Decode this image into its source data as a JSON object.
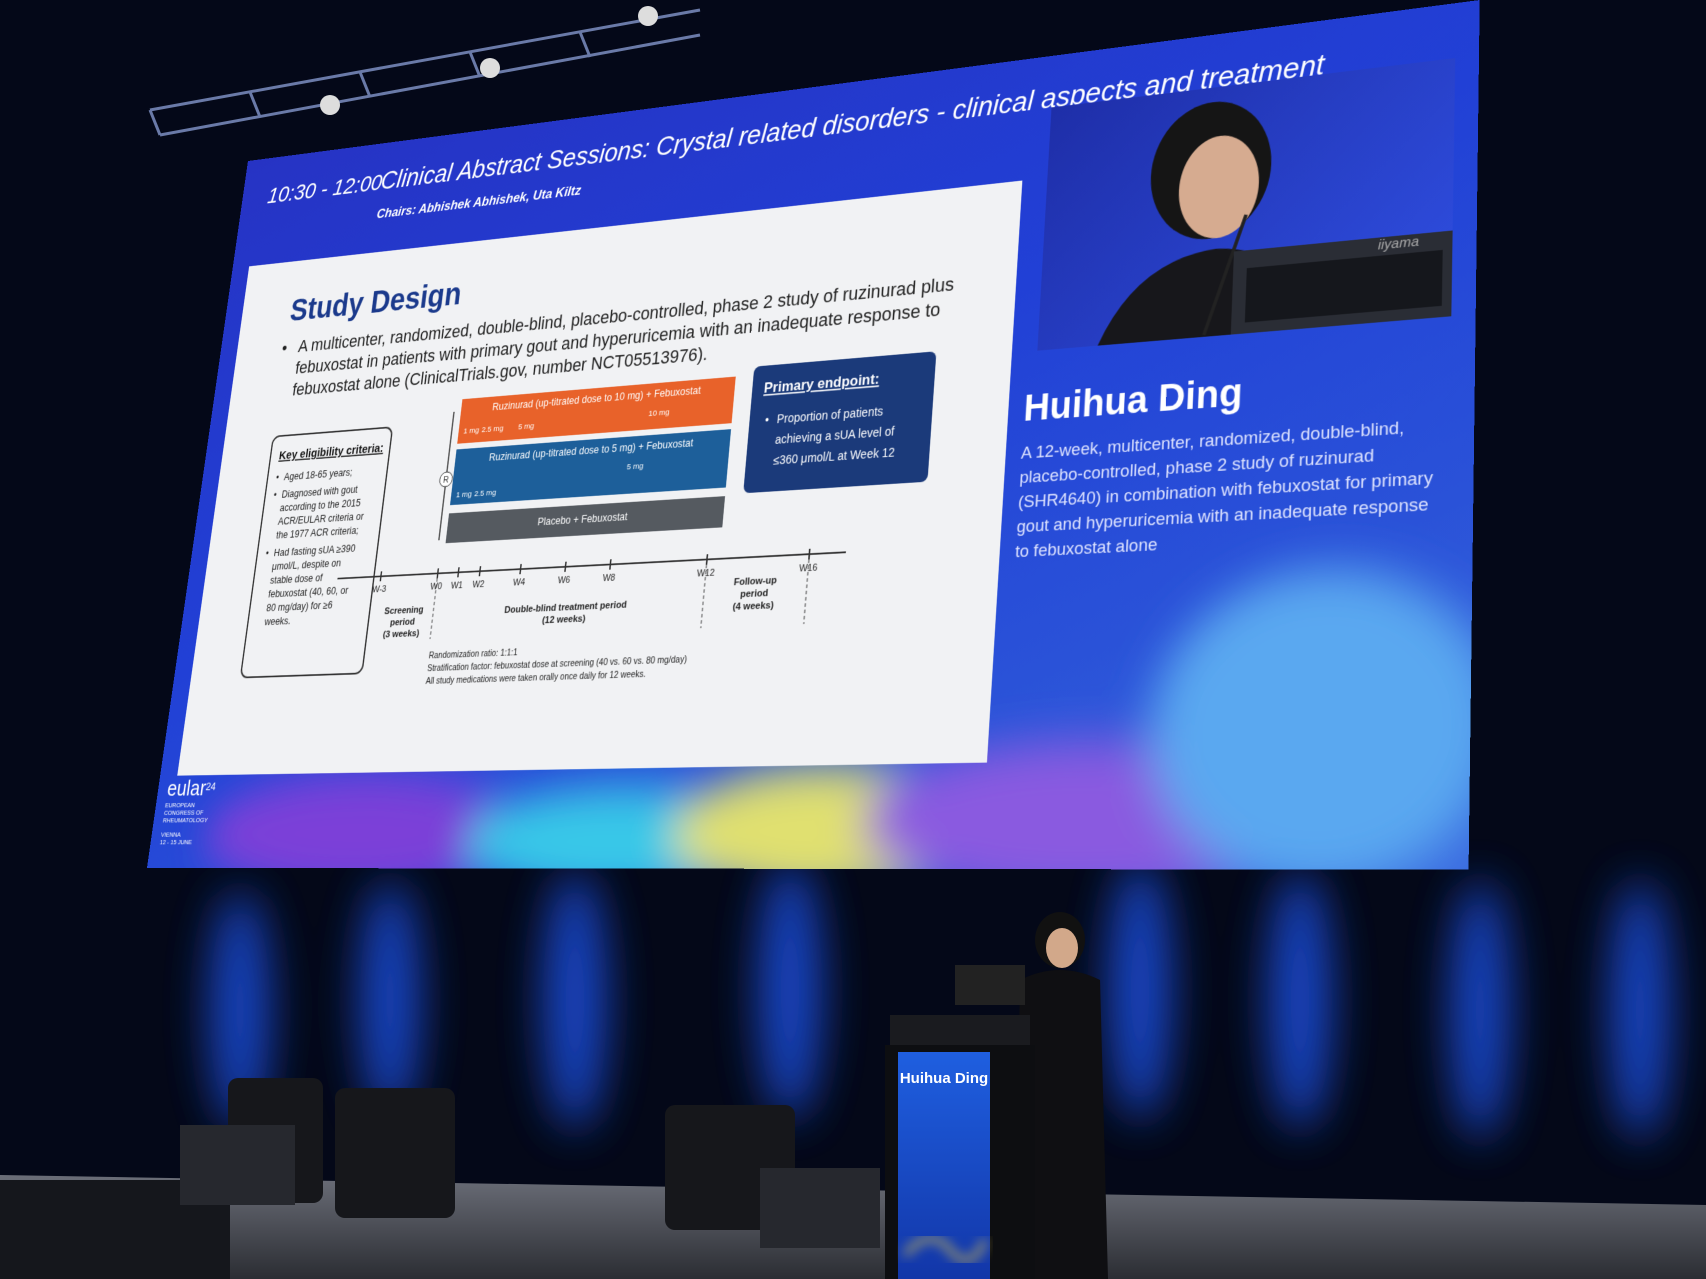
{
  "screen": {
    "session_time": "10:30 - 12:00",
    "session_title": "Clinical Abstract Sessions: Crystal related disorders - clinical aspects and treatment",
    "chairs": "Chairs: Abhishek Abhishek, Uta Kiltz",
    "slide": {
      "title": "Study Design",
      "bullet_lines": [
        "A multicenter, randomized, double-blind, placebo-controlled, phase 2 study of ruzinurad plus",
        "febuxostat in patients with primary gout and hyperuricemia with an inadequate response to",
        "febuxostat alone (ClinicalTrials.gov, number NCT05513976)."
      ],
      "eligibility": {
        "heading": "Key eligibility criteria:",
        "items": [
          [
            "Aged 18-65 years;"
          ],
          [
            "Diagnosed with gout",
            "according to the 2015",
            "ACR/EULAR criteria or",
            "the 1977 ACR criteria;"
          ],
          [
            "Had fasting sUA ≥390",
            "μmol/L, despite on",
            "stable dose of",
            "febuxostat (40, 60, or",
            "80 mg/day) for ≥6",
            "weeks."
          ]
        ]
      },
      "arms": [
        {
          "label": "Ruzinurad (up-titrated dose to 10 mg) + Febuxostat",
          "doses": [
            "1 mg",
            "2.5 mg",
            "5 mg",
            "10 mg"
          ]
        },
        {
          "label": "Ruzinurad (up-titrated dose to 5 mg) + Febuxostat",
          "doses": [
            "5 mg",
            "1 mg",
            "2.5 mg"
          ]
        },
        {
          "label": "Placebo + Febuxostat",
          "doses": []
        }
      ],
      "randomization_mark": "R",
      "timeline_ticks": [
        "W-3",
        "W0",
        "W1",
        "W2",
        "W4",
        "W6",
        "W8",
        "W12",
        "W16"
      ],
      "periods": [
        [
          "Screening",
          "period",
          "(3 weeks)"
        ],
        [
          "Double-blind treatment period",
          "(12 weeks)"
        ],
        [
          "Follow-up",
          "period",
          "(4 weeks)"
        ]
      ],
      "footnotes": [
        "Randomization ratio: 1:1:1",
        "Stratification factor: febuxostat dose at screening (40 vs. 60 vs. 80 mg/day)",
        "All study medications were taken orally once daily for 12 weeks."
      ],
      "primary_endpoint": {
        "heading": "Primary endpoint:",
        "lines": [
          "Proportion of patients",
          "achieving a sUA level of",
          "≤360 μmol/L at Week 12"
        ]
      }
    },
    "speaker": {
      "name": "Huihua Ding",
      "description_lines": [
        "A 12-week, multicenter, randomized, double-blind,",
        "placebo-controlled, phase 2 study of ruzinurad",
        "(SHR4640) in combination with febuxostat for primary",
        "gout and hyperuricemia with an inadequate response",
        "to febuxostat alone"
      ],
      "monitor_brand": "iiyama"
    },
    "logo": {
      "name": "eular",
      "edition": "24",
      "org_lines": [
        "EUROPEAN",
        "CONGRESS OF",
        "RHEUMATOLOGY"
      ],
      "city": "VIENNA",
      "dates": "12 - 15 JUNE"
    }
  },
  "podium": {
    "name": "Huihua Ding"
  }
}
